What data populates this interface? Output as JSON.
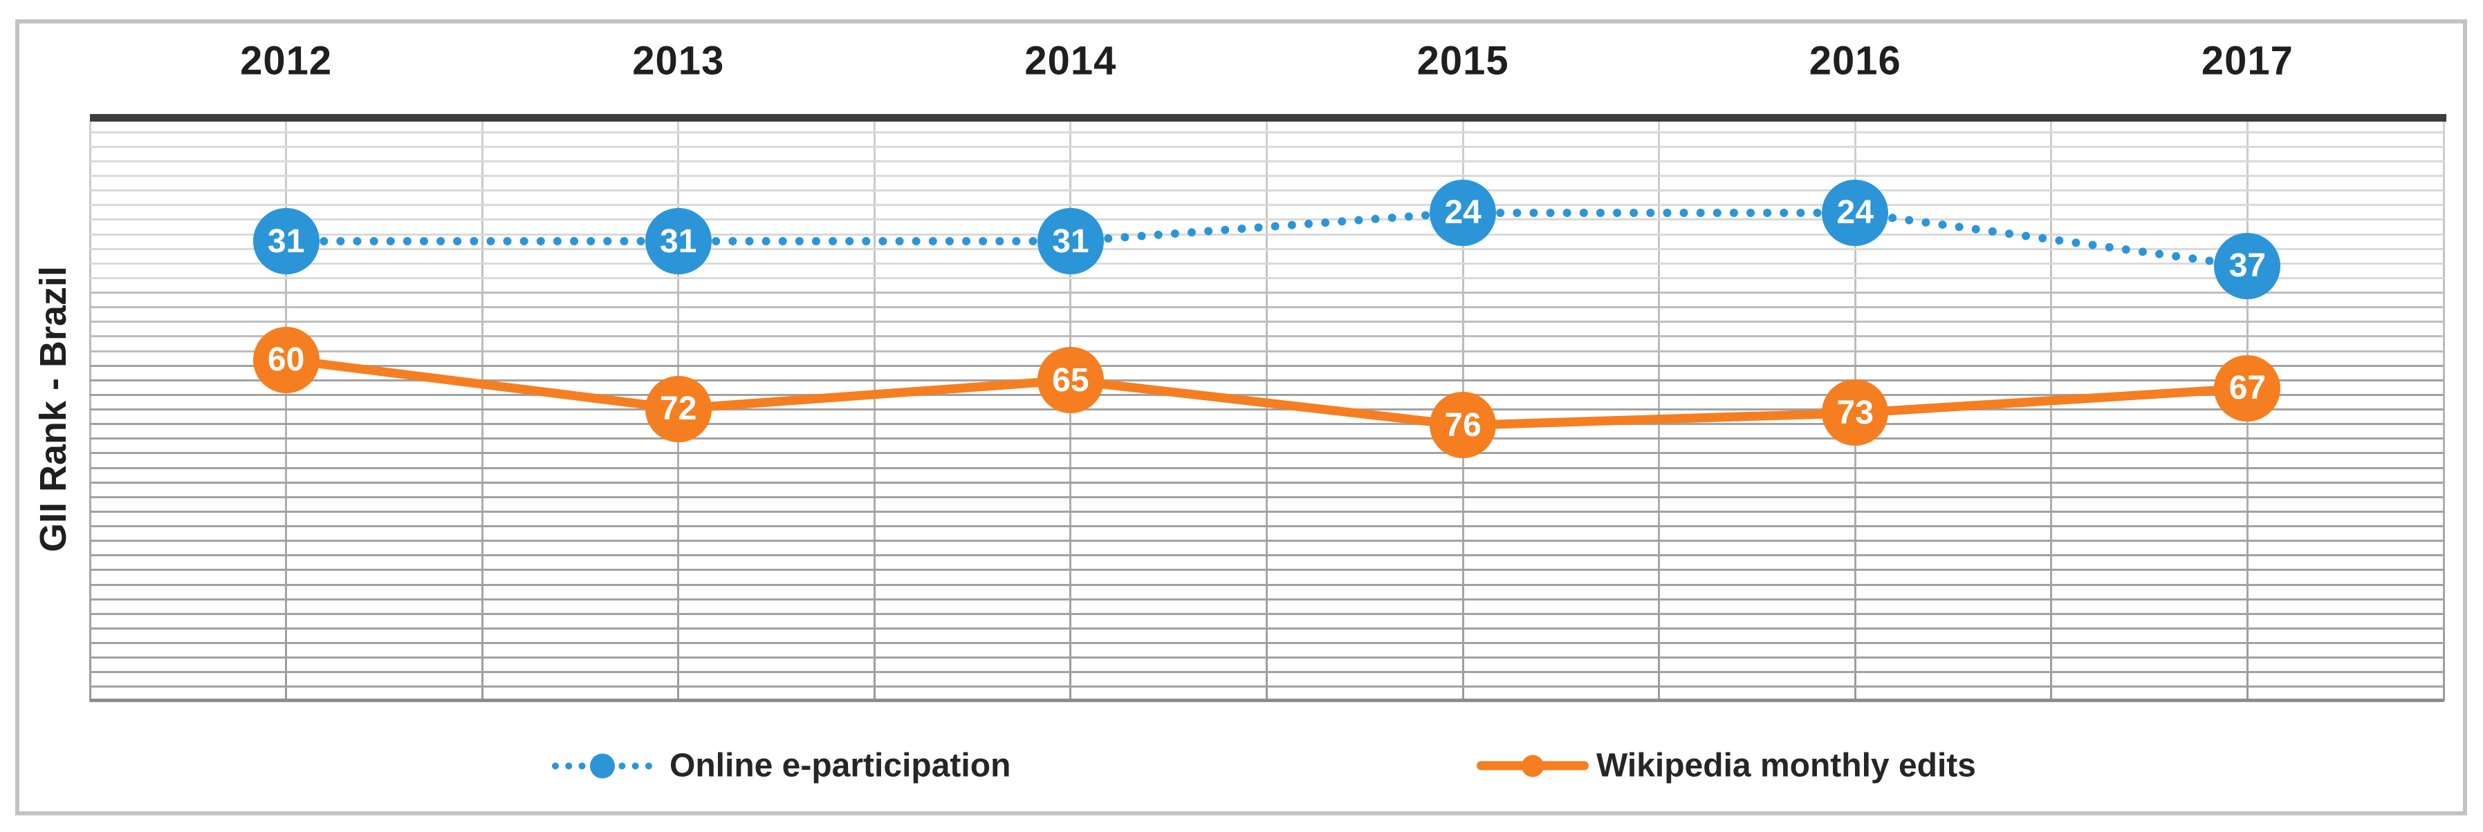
{
  "chart_data": {
    "type": "line",
    "title": "",
    "ylabel": "GII Rank - Brazil",
    "xlabel": "",
    "categories": [
      "2012",
      "2013",
      "2014",
      "2015",
      "2016",
      "2017"
    ],
    "series": [
      {
        "name": "Online e-participation",
        "values": [
          31,
          31,
          31,
          24,
          24,
          37
        ],
        "color": "#2b95d8",
        "line_style": "dotted",
        "marker": "circle-with-value-label"
      },
      {
        "name": "Wikipedia monthly edits",
        "values": [
          60,
          72,
          65,
          76,
          73,
          67
        ],
        "color": "#f57e20",
        "line_style": "solid",
        "marker": "circle-with-value-label"
      }
    ],
    "ylim": [
      0,
      143
    ],
    "y_axis_inverted_rank_scale": true,
    "y_axis_tick_labels_visible": false,
    "grid": "on",
    "legend_position": "bottom"
  },
  "legend": {
    "items": [
      {
        "label": "Online e-participation"
      },
      {
        "label": "Wikipedia monthly edits"
      }
    ]
  },
  "colors": {
    "blue_series": "#2b95d8",
    "orange_series": "#f57e20",
    "top_axis_bar": "#3d3d3d",
    "grid_light": "#d9d9d9",
    "grid_medium": "#bdbdbd",
    "grid_dark": "#a1a1a1",
    "frame_border": "#c3c3c3",
    "text": "#1f1f1f",
    "marker_text": "#ffffff"
  }
}
